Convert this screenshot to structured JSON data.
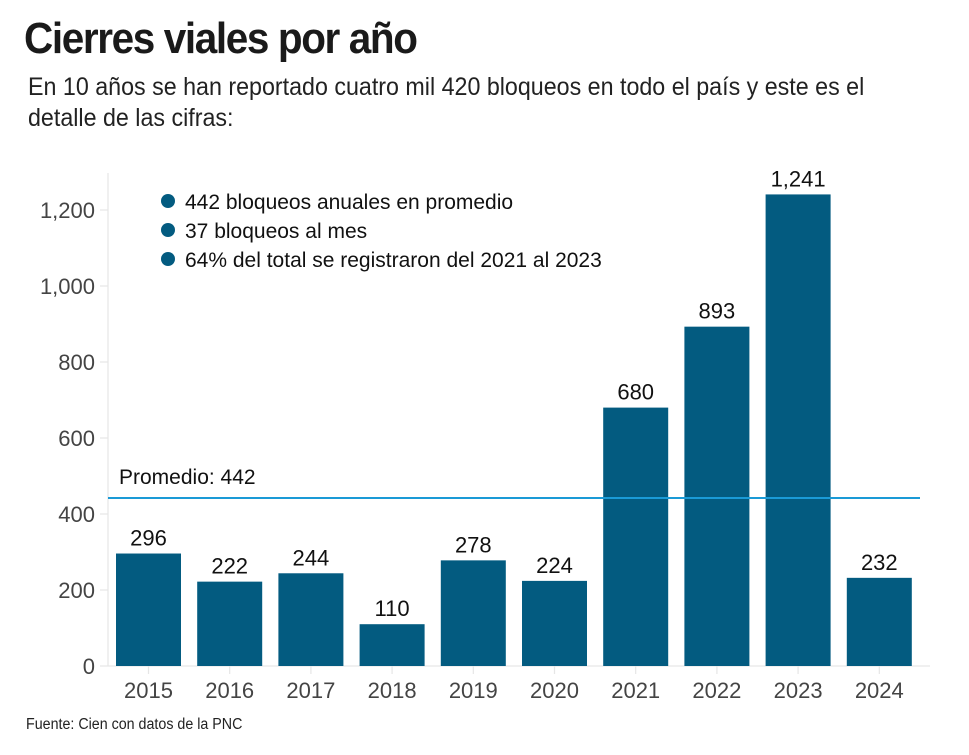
{
  "header": {
    "title": "Cierres viales por año",
    "subtitle": "En 10 años se han reportado cuatro mil 420 bloqueos en todo el país y este es el detalle de las cifras:"
  },
  "footer": {
    "source": "Fuente: Cien con datos de la PNC"
  },
  "colors": {
    "bar": "#035b80",
    "average_line": "#1a9ad6",
    "bullet": "#035b80",
    "axis_text": "#444444",
    "grid": "#e6e6e6"
  },
  "chart_data": {
    "type": "bar",
    "title": "Cierres viales por año",
    "xlabel": "",
    "ylabel": "",
    "categories": [
      "2015",
      "2016",
      "2017",
      "2018",
      "2019",
      "2020",
      "2021",
      "2022",
      "2023",
      "2024"
    ],
    "values": [
      296,
      222,
      244,
      110,
      278,
      224,
      680,
      893,
      1241,
      232
    ],
    "data_labels": [
      "296",
      "222",
      "244",
      "110",
      "278",
      "224",
      "680",
      "893",
      "1,241",
      "232"
    ],
    "ylim": [
      0,
      1300
    ],
    "yticks": [
      0,
      200,
      400,
      600,
      800,
      1000,
      1200
    ],
    "ytick_labels": [
      "0",
      "200",
      "400",
      "600",
      "800",
      "1,000",
      "1,200"
    ],
    "grid": false,
    "reference_line": {
      "value": 442,
      "label": "Promedio: 442"
    },
    "annotations": [
      "442 bloqueos anuales en promedio",
      "37 bloqueos al mes",
      "64% del total se registraron del 2021 al 2023"
    ],
    "legend": "none"
  }
}
